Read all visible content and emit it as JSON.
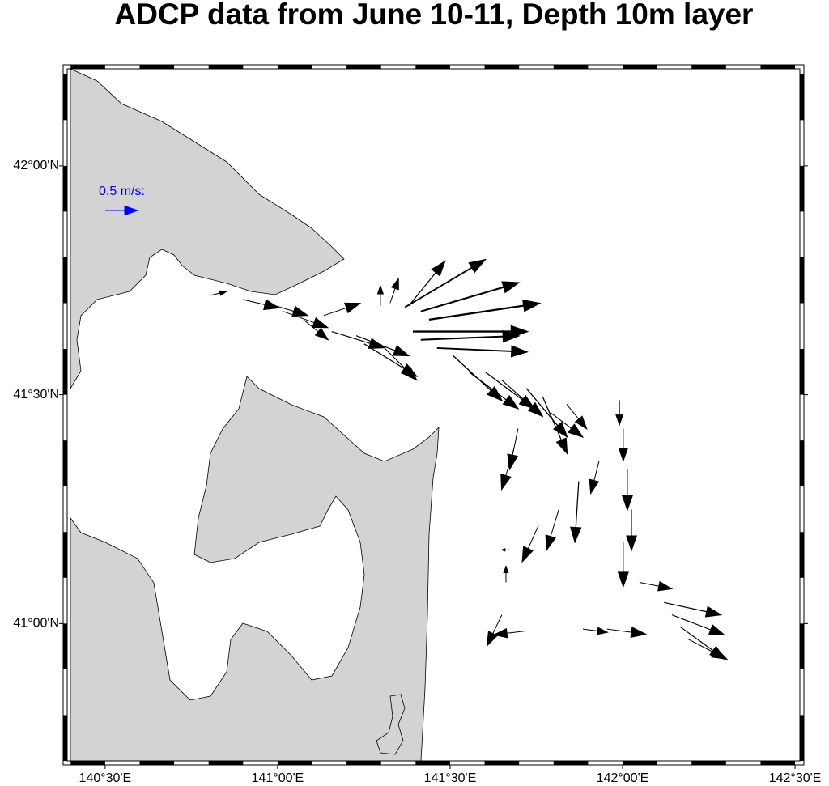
{
  "chart_data": {
    "type": "vector",
    "title": "ADCP data from June 10-11, Depth 10m layer",
    "xlim": [
      140.39,
      142.514
    ],
    "ylim": [
      40.7,
      42.212
    ],
    "xticks": [
      {
        "value": 140.5,
        "label": "140°30'E"
      },
      {
        "value": 141,
        "label": "141°00'E"
      },
      {
        "value": 141.5,
        "label": "141°30'E"
      },
      {
        "value": 142,
        "label": "142°00'E"
      },
      {
        "value": 142.5,
        "label": "142°30'E"
      }
    ],
    "yticks": [
      {
        "value": 41,
        "label": "41°00'N"
      },
      {
        "value": 41.5,
        "label": "41°30'N"
      },
      {
        "value": 42,
        "label": "42°00'N"
      }
    ],
    "land_color": "#d3d3d3",
    "color": "#000000",
    "scale": {
      "label": "0.5 m/s:",
      "value": 0.5,
      "color": "#0000ff"
    },
    "lon": [
      140.805,
      140.899,
      140.969,
      141.016,
      141.075,
      141.134,
      141.157,
      141.228,
      141.251,
      141.298,
      141.298,
      141.326,
      141.369,
      141.38,
      141.415,
      141.439,
      141.392,
      141.415,
      141.462,
      141.509,
      141.556,
      141.603,
      141.65,
      141.721,
      141.768,
      141.791,
      141.838,
      141.697,
      141.685,
      141.991,
      142.002,
      142.014,
      142.026,
      142.002,
      141.756,
      141.815,
      141.873,
      141.932,
      141.674,
      141.662,
      141.65,
      141.721,
      141.885,
      141.955,
      142.049,
      142.12,
      142.143,
      142.167,
      142.19
    ],
    "lat": [
      41.717,
      41.708,
      41.7,
      41.682,
      41.664,
      41.673,
      41.638,
      41.629,
      41.611,
      41.611,
      41.694,
      41.7,
      41.691,
      41.694,
      41.682,
      41.664,
      41.638,
      41.62,
      41.602,
      41.585,
      41.549,
      41.549,
      41.532,
      41.514,
      41.496,
      41.461,
      41.479,
      41.426,
      41.382,
      41.488,
      41.426,
      41.337,
      41.249,
      41.178,
      41.214,
      41.249,
      41.311,
      41.355,
      41.161,
      41.09,
      41.019,
      40.984,
      40.988,
      40.988,
      41.09,
      41.046,
      41.019,
      40.993,
      40.966
    ],
    "u": [
      0.25,
      0.56,
      0.63,
      0.69,
      0.38,
      0.56,
      0.81,
      0.81,
      0.81,
      0.56,
      0,
      0.13,
      1.23,
      0.56,
      1.5,
      1.69,
      1.75,
      1.5,
      1.38,
      0.75,
      0.75,
      0.75,
      0.63,
      0.63,
      0.38,
      0.5,
      0.31,
      -0.13,
      -0.19,
      0,
      0,
      0,
      0,
      0,
      -0.25,
      -0.19,
      -0.06,
      -0.13,
      -0.13,
      0,
      -0.23,
      -0.5,
      0.38,
      0.6,
      0.5,
      0.88,
      0.81,
      0.69,
      0.6
    ],
    "v": [
      0.06,
      -0.13,
      -0.19,
      -0.25,
      -0.31,
      0.19,
      -0.25,
      -0.31,
      -0.5,
      -0.56,
      0.31,
      0.38,
      0.73,
      0.69,
      0.44,
      0.25,
      0,
      0.06,
      -0.06,
      -0.69,
      -0.56,
      -0.56,
      -0.56,
      -0.75,
      -0.88,
      -0.38,
      -0.38,
      -0.63,
      -0.63,
      -0.38,
      -0.5,
      -0.63,
      -0.63,
      -0.69,
      -0.56,
      -0.63,
      -0.94,
      -0.5,
      0,
      0.25,
      -0.48,
      -0.06,
      -0.05,
      -0.08,
      -0.1,
      -0.19,
      -0.31,
      -0.5,
      -0.31
    ]
  }
}
